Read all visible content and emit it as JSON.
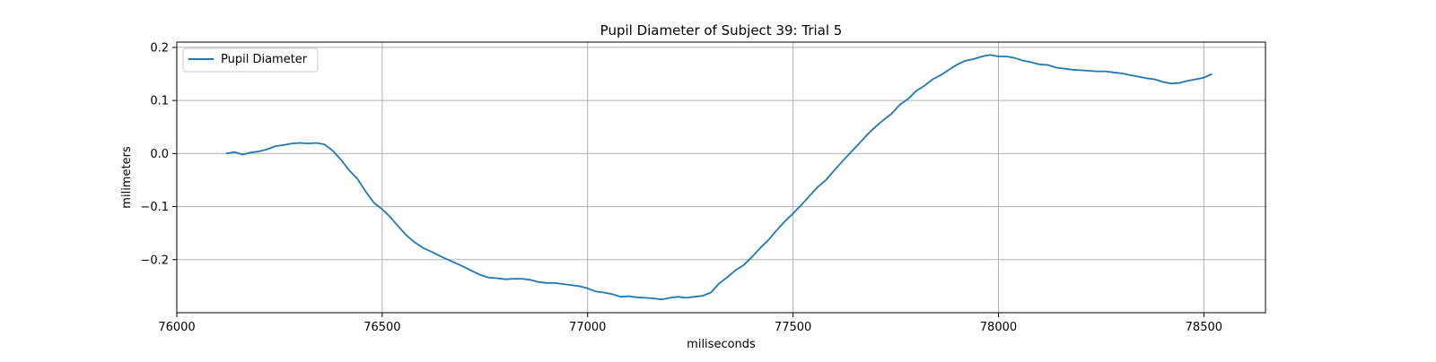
{
  "chart_data": {
    "type": "line",
    "title": "Pupil Diameter of Subject 39: Trial 5",
    "xlabel": "miliseconds",
    "ylabel": "milimeters",
    "xlim": [
      76000,
      78650
    ],
    "ylim": [
      -0.3,
      0.21
    ],
    "x_ticks": [
      76000,
      76500,
      77000,
      77500,
      78000,
      78500
    ],
    "x_tick_labels": [
      "76000",
      "76500",
      "77000",
      "77500",
      "78000",
      "78500"
    ],
    "y_ticks": [
      -0.2,
      -0.1,
      0.0,
      0.1,
      0.2
    ],
    "y_tick_labels": [
      "−0.2",
      "−0.1",
      "0.0",
      "0.1",
      "0.2"
    ],
    "grid": true,
    "legend": {
      "position": "top-left",
      "entries": [
        "Pupil Diameter"
      ]
    },
    "series": [
      {
        "name": "Pupil Diameter",
        "color": "#1f77b4",
        "x": [
          76120,
          76140,
          76160,
          76180,
          76200,
          76220,
          76240,
          76260,
          76280,
          76300,
          76320,
          76340,
          76360,
          76380,
          76400,
          76420,
          76440,
          76460,
          76480,
          76500,
          76520,
          76540,
          76560,
          76580,
          76600,
          76620,
          76640,
          76660,
          76680,
          76700,
          76720,
          76740,
          76760,
          76780,
          76800,
          76820,
          76840,
          76860,
          76880,
          76900,
          76920,
          76940,
          76960,
          76980,
          77000,
          77020,
          77040,
          77060,
          77080,
          77100,
          77120,
          77140,
          77160,
          77180,
          77200,
          77220,
          77240,
          77260,
          77280,
          77300,
          77320,
          77340,
          77360,
          77380,
          77400,
          77420,
          77440,
          77460,
          77480,
          77500,
          77520,
          77540,
          77560,
          77580,
          77600,
          77620,
          77640,
          77660,
          77680,
          77700,
          77720,
          77740,
          77760,
          77780,
          77800,
          77820,
          77840,
          77860,
          77880,
          77900,
          77920,
          77940,
          77960,
          77980,
          78000,
          78020,
          78040,
          78060,
          78080,
          78100,
          78120,
          78140,
          78160,
          78180,
          78200,
          78220,
          78240,
          78260,
          78280,
          78300,
          78320,
          78340,
          78360,
          78380,
          78400,
          78420,
          78440,
          78460,
          78480,
          78500,
          78520
        ],
        "y": [
          0.0,
          0.003,
          -0.002,
          0.002,
          0.004,
          0.008,
          0.014,
          0.016,
          0.019,
          0.02,
          0.019,
          0.02,
          0.017,
          0.005,
          -0.012,
          -0.032,
          -0.048,
          -0.072,
          -0.093,
          -0.105,
          -0.12,
          -0.138,
          -0.155,
          -0.168,
          -0.178,
          -0.185,
          -0.193,
          -0.2,
          -0.207,
          -0.214,
          -0.222,
          -0.229,
          -0.234,
          -0.235,
          -0.237,
          -0.236,
          -0.236,
          -0.238,
          -0.242,
          -0.244,
          -0.244,
          -0.246,
          -0.248,
          -0.25,
          -0.254,
          -0.26,
          -0.262,
          -0.265,
          -0.27,
          -0.269,
          -0.271,
          -0.272,
          -0.273,
          -0.275,
          -0.272,
          -0.27,
          -0.272,
          -0.27,
          -0.268,
          -0.262,
          -0.245,
          -0.233,
          -0.22,
          -0.21,
          -0.195,
          -0.178,
          -0.163,
          -0.145,
          -0.128,
          -0.113,
          -0.097,
          -0.08,
          -0.063,
          -0.05,
          -0.032,
          -0.015,
          0.002,
          0.018,
          0.035,
          0.05,
          0.063,
          0.075,
          0.092,
          0.103,
          0.118,
          0.128,
          0.14,
          0.148,
          0.158,
          0.168,
          0.175,
          0.178,
          0.183,
          0.186,
          0.183,
          0.183,
          0.18,
          0.175,
          0.172,
          0.168,
          0.167,
          0.162,
          0.16,
          0.158,
          0.157,
          0.156,
          0.155,
          0.155,
          0.153,
          0.151,
          0.148,
          0.145,
          0.142,
          0.14,
          0.135,
          0.132,
          0.133,
          0.137,
          0.14,
          0.143,
          0.15
        ]
      }
    ]
  }
}
